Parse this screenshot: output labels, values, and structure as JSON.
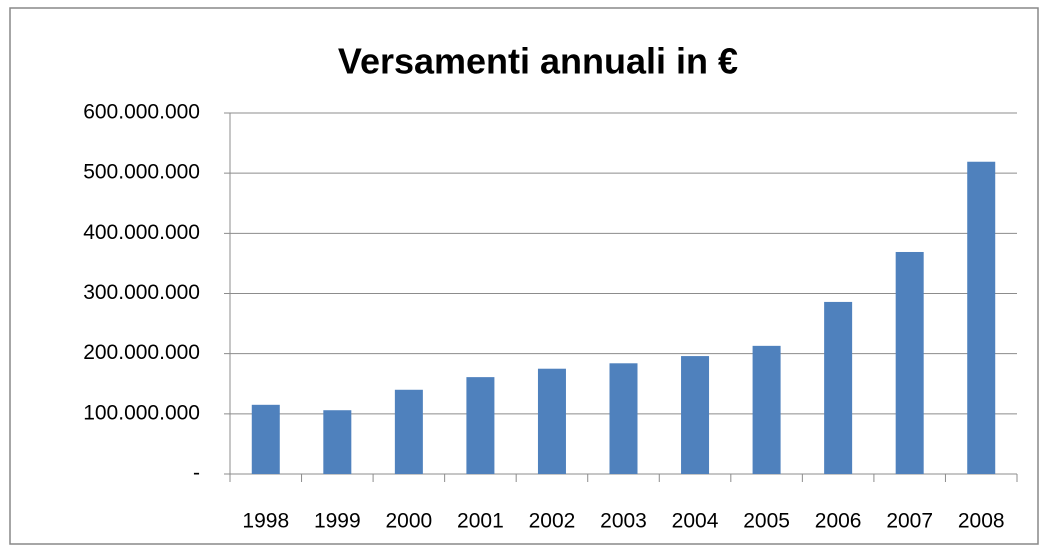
{
  "chart_data": {
    "type": "bar",
    "title": "Versamenti annuali in €",
    "categories": [
      "1998",
      "1999",
      "2000",
      "2001",
      "2002",
      "2003",
      "2004",
      "2005",
      "2006",
      "2007",
      "2008"
    ],
    "values": [
      115000000,
      106000000,
      140000000,
      161000000,
      175000000,
      184000000,
      196000000,
      213000000,
      286000000,
      369000000,
      519000000
    ],
    "color": "#4f81bd",
    "ylim": [
      0,
      600000000
    ],
    "yticks": [
      {
        "value": 0,
        "label": "-"
      },
      {
        "value": 100000000,
        "label": "100.000.000"
      },
      {
        "value": 200000000,
        "label": "200.000.000"
      },
      {
        "value": 300000000,
        "label": "300.000.000"
      },
      {
        "value": 400000000,
        "label": "400.000.000"
      },
      {
        "value": 500000000,
        "label": "500.000.000"
      },
      {
        "value": 600000000,
        "label": "600.000.000"
      }
    ],
    "grid": true
  }
}
